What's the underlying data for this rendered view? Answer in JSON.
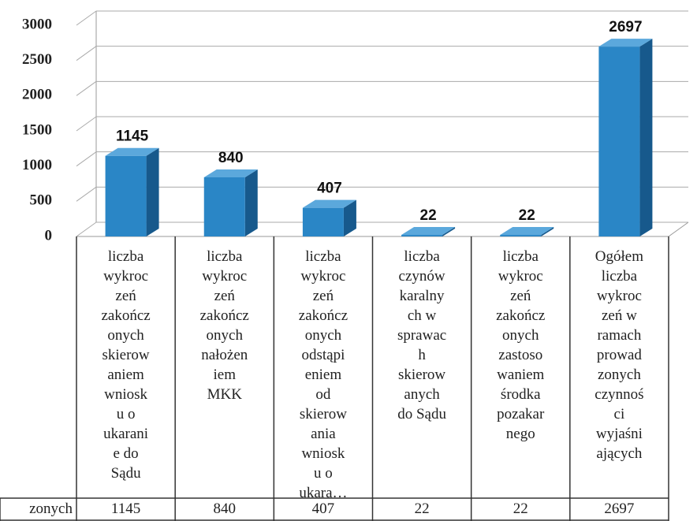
{
  "chart_data": {
    "type": "bar3d",
    "categories": [
      "liczba\nwykroc\nzeń\nzakończ\nonych\nskierow\naniem\nwniosk\nu o\nukarani\ne do\nSądu",
      "liczba\nwykroc\nzeń\nzakończ\nonych\nnałożen\niem\nMKK",
      "liczba\nwykroc\nzeń\nzakończ\nonych\nodstąpi\neniem\nod\nskierow\nania\nwniosk\nu o\nukara…",
      "liczba\nczynów\nkaralny\nch w\nsprawac\nh\nskierow\nanych\ndo Sądu",
      "liczba\nwykroc\nzeń\nzakończ\nonych\nzastoso\nwaniem\nśrodka\npozakar\nnego",
      "Ogółem\nliczba\nwykroc\nzeń w\nramach\nprowad\nzonych\nczynnoś\nci\nwyjaśni\nających"
    ],
    "series": [
      {
        "name": "zonych",
        "color": "#2a86c6",
        "values": [
          1145,
          840,
          407,
          22,
          22,
          2697
        ]
      }
    ],
    "ylim": [
      0,
      3000
    ],
    "yticks": [
      0,
      500,
      1000,
      1500,
      2000,
      2500,
      3000
    ],
    "grid": true,
    "data_table": true
  }
}
